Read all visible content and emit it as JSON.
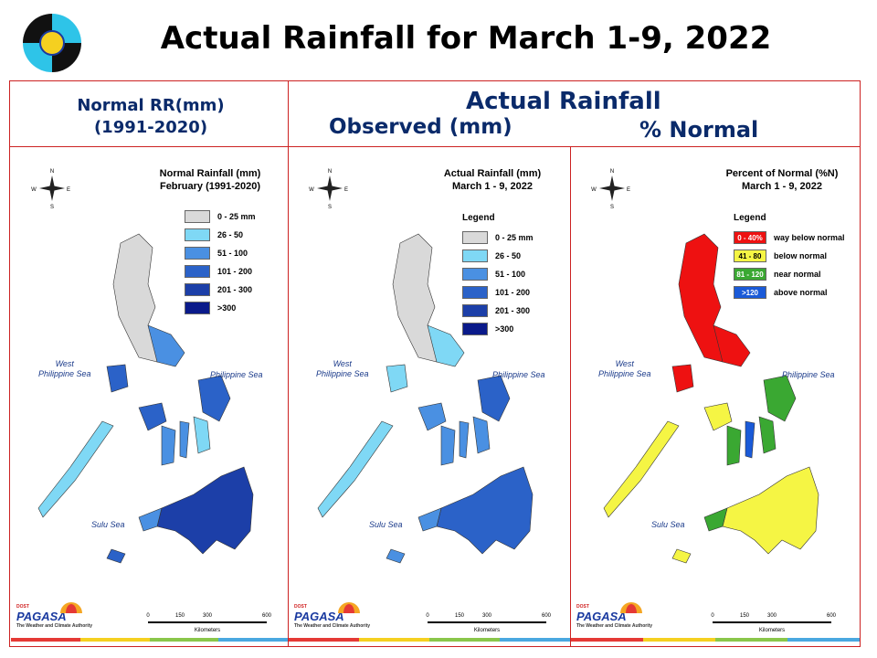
{
  "title": "Actual Rainfall for March 1-9, 2022",
  "headers": {
    "normal_line1": "Normal RR(mm)",
    "normal_line2": "(1991-2020)",
    "actual": "Actual Rainfall",
    "observed": "Observed (mm)",
    "percent": "% Normal"
  },
  "panels": [
    {
      "title_line1": "Normal Rainfall (mm)",
      "title_line2": "February (1991-2020)",
      "legend_title": "",
      "legend": [
        {
          "label": "0 - 25 mm",
          "color": "#d9d9d9"
        },
        {
          "label": "26 - 50",
          "color": "#7fd8f5"
        },
        {
          "label": "51 - 100",
          "color": "#4a90e2"
        },
        {
          "label": "101 - 200",
          "color": "#2b62c8"
        },
        {
          "label": "201 - 300",
          "color": "#1c3fa8"
        },
        {
          "label": ">300",
          "color": "#0a1a8a"
        }
      ],
      "seas": {
        "west_1": "West",
        "west_2": "Philippine Sea",
        "east": "Philippine Sea",
        "sulu": "Sulu Sea"
      },
      "scale": [
        "0",
        "150",
        "300",
        "600"
      ],
      "scale_unit": "Kilometers"
    },
    {
      "title_line1": "Actual Rainfall (mm)",
      "title_line2": "March 1 - 9, 2022",
      "legend_title": "Legend",
      "legend": [
        {
          "label": "0 - 25 mm",
          "color": "#d9d9d9"
        },
        {
          "label": "26 - 50",
          "color": "#7fd8f5"
        },
        {
          "label": "51 - 100",
          "color": "#4a90e2"
        },
        {
          "label": "101 - 200",
          "color": "#2b62c8"
        },
        {
          "label": "201 - 300",
          "color": "#1c3fa8"
        },
        {
          "label": ">300",
          "color": "#0a1a8a"
        }
      ],
      "seas": {
        "west_1": "West",
        "west_2": "Philippine Sea",
        "east": "Philippine Sea",
        "sulu": "Sulu Sea"
      },
      "scale": [
        "0",
        "150",
        "300",
        "600"
      ],
      "scale_unit": "Kilometers"
    },
    {
      "title_line1": "Percent of Normal (%N)",
      "title_line2": "March 1 - 9, 2022",
      "legend_title": "Legend",
      "legend": [
        {
          "swatch": "0 - 40%",
          "label": "way below normal",
          "color": "#ee1111"
        },
        {
          "swatch": "41 - 80",
          "label": "below normal",
          "color": "#f5f544"
        },
        {
          "swatch": "81 - 120",
          "label": "near normal",
          "color": "#3aa832"
        },
        {
          "swatch": ">120",
          "label": "above normal",
          "color": "#1a5ad8"
        }
      ],
      "seas": {
        "west_1": "West",
        "west_2": "Philippine Sea",
        "east": "Philippine Sea",
        "sulu": "Sulu Sea"
      },
      "scale": [
        "0",
        "150",
        "300",
        "600"
      ],
      "scale_unit": "Kilometers"
    }
  ],
  "branding": {
    "top": "DOST",
    "name": "PAGASA",
    "tagline": "The Weather and Climate Authority"
  },
  "compass": {
    "n": "N",
    "s": "S",
    "e": "E",
    "w": "W"
  }
}
